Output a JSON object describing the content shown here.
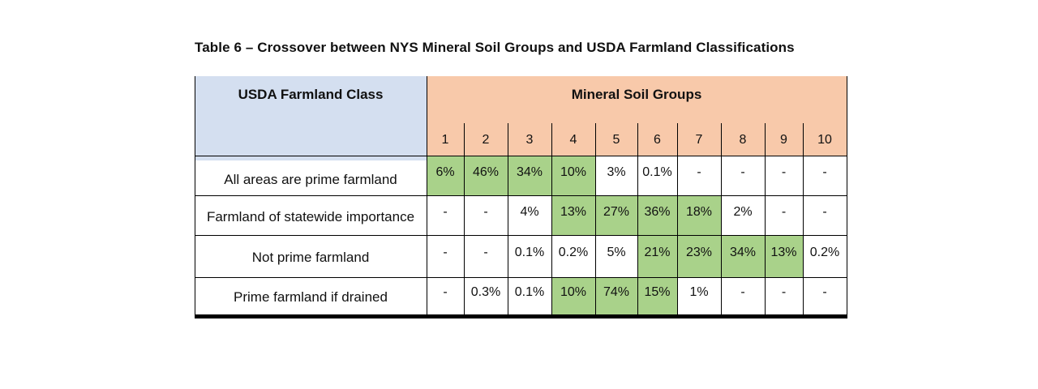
{
  "caption": "Table 6 – Crossover between NYS Mineral Soil Groups and USDA Farmland Classifications",
  "table": {
    "row_header": "USDA Farmland Class",
    "group_header": "Mineral Soil Groups",
    "columns": [
      "1",
      "2",
      "3",
      "4",
      "5",
      "6",
      "7",
      "8",
      "9",
      "10"
    ],
    "rows": [
      {
        "label": "All areas are prime farmland",
        "values": [
          "6%",
          "46%",
          "34%",
          "10%",
          "3%",
          "0.1%",
          "-",
          "-",
          "-",
          "-"
        ],
        "highlighted": [
          true,
          true,
          true,
          true,
          false,
          false,
          false,
          false,
          false,
          false
        ]
      },
      {
        "label": "Farmland of statewide importance",
        "values": [
          "-",
          "-",
          "4%",
          "13%",
          "27%",
          "36%",
          "18%",
          "2%",
          "-",
          "-"
        ],
        "highlighted": [
          false,
          false,
          false,
          true,
          true,
          true,
          true,
          false,
          false,
          false
        ]
      },
      {
        "label": "Not prime farmland",
        "values": [
          "-",
          "-",
          "0.1%",
          "0.2%",
          "5%",
          "21%",
          "23%",
          "34%",
          "13%",
          "0.2%"
        ],
        "highlighted": [
          false,
          false,
          false,
          false,
          false,
          true,
          true,
          true,
          true,
          false
        ]
      },
      {
        "label": "Prime farmland if drained",
        "values": [
          "-",
          "0.3%",
          "0.1%",
          "10%",
          "74%",
          "15%",
          "1%",
          "-",
          "-",
          "-"
        ],
        "highlighted": [
          false,
          false,
          false,
          true,
          true,
          true,
          false,
          false,
          false,
          false
        ]
      }
    ]
  },
  "colors": {
    "header_blue": "#d4dff0",
    "header_orange": "#f8c9aa",
    "highlight_green": "#a9d28a"
  }
}
